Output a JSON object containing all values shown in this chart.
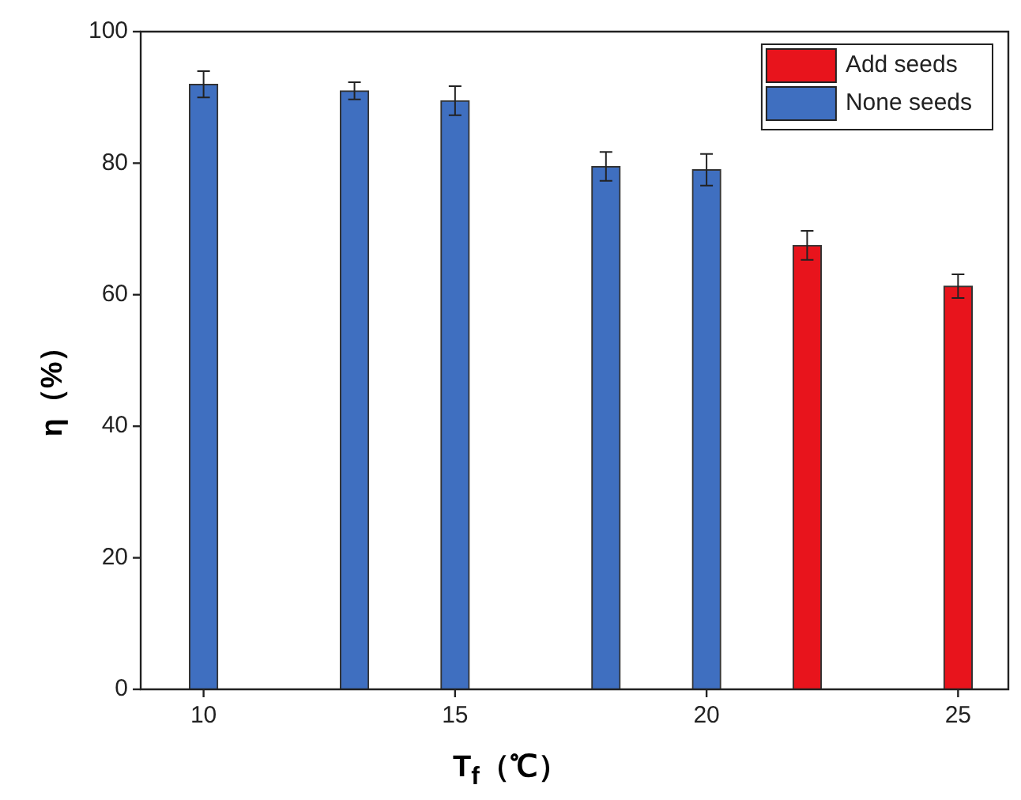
{
  "chart_data": {
    "type": "bar",
    "xlabel": "T$_{f}$（℃）",
    "ylabel": "η（%）",
    "xlim": [
      8.75,
      26
    ],
    "xticks": [
      10,
      15,
      20,
      25
    ],
    "ylim": [
      0,
      100
    ],
    "yticks": [
      0,
      20,
      40,
      60,
      80,
      100
    ],
    "grid": false,
    "legend": "top right",
    "series": [
      {
        "name": "Add seeds",
        "color": "#e8141c",
        "x": [
          22,
          25
        ],
        "values": [
          67.5,
          61.3
        ],
        "errors": [
          2.2,
          1.8
        ]
      },
      {
        "name": "None seeds",
        "color": "#3f6fc0",
        "x": [
          10,
          13,
          15,
          18,
          20
        ],
        "values": [
          92,
          91,
          89.5,
          79.5,
          79
        ],
        "errors": [
          2,
          1.3,
          2.2,
          2.2,
          2.4
        ]
      }
    ]
  }
}
